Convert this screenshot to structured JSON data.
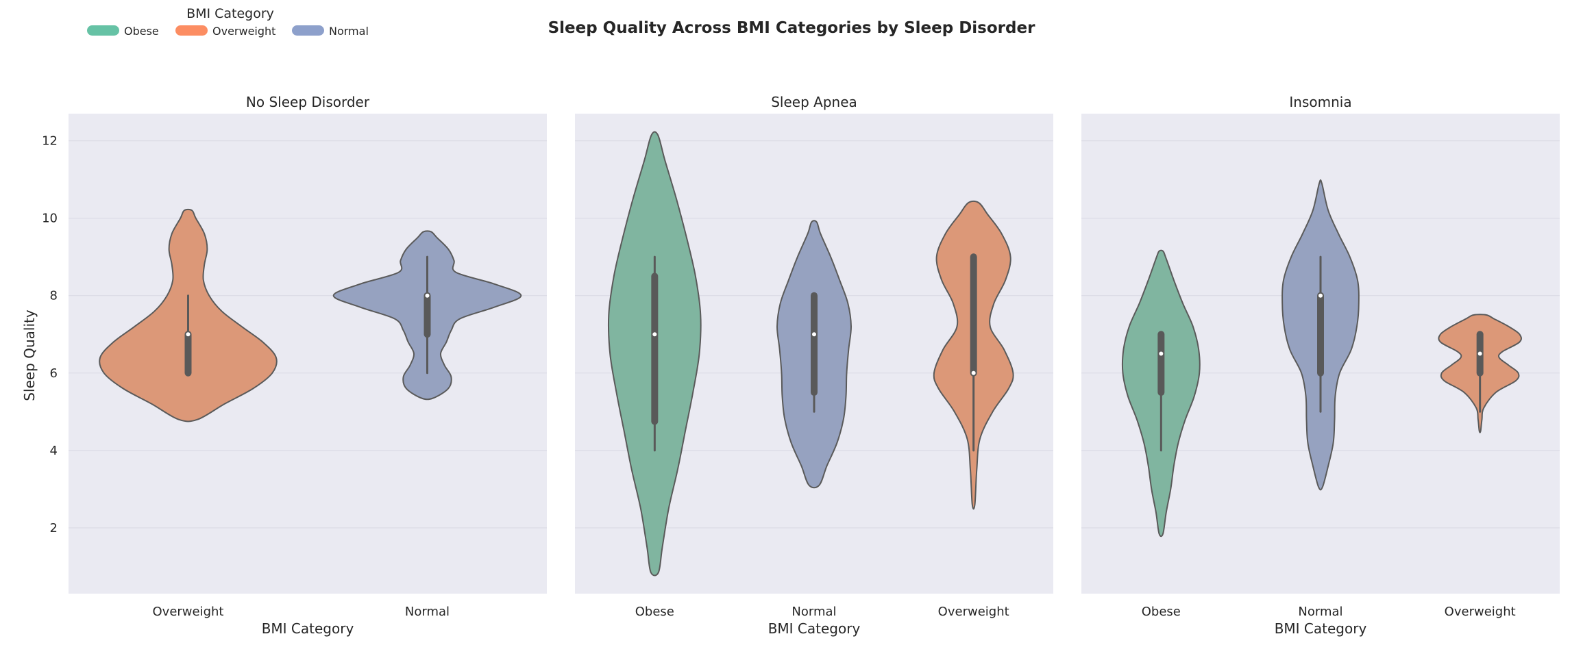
{
  "chart_data": {
    "type": "violin",
    "title": "Sleep Quality Across BMI Categories by Sleep Disorder",
    "ylabel": "Sleep Quality",
    "xlabel": "BMI Category",
    "ylim": [
      0.3,
      12.7
    ],
    "yticks": [
      2,
      4,
      6,
      8,
      10,
      12
    ],
    "grid": true,
    "legend": {
      "title": "BMI Category",
      "placement": "top-left",
      "entries": [
        {
          "name": "Obese",
          "color": "#66c2a5"
        },
        {
          "name": "Overweight",
          "color": "#fc8d62"
        },
        {
          "name": "Normal",
          "color": "#8da0cb"
        }
      ]
    },
    "colors": {
      "Obese": "#80b5a0",
      "Overweight": "#dc9878",
      "Normal": "#96a2c0",
      "outline": "#5a5a5a",
      "box": "#595959",
      "panel_bg": "#eaeaf2",
      "grid": "#dcdce6"
    },
    "panels": [
      {
        "title": "No Sleep Disorder",
        "categories": [
          "Overweight",
          "Normal"
        ],
        "violins": [
          {
            "category": "Overweight",
            "min": 4.8,
            "max": 10.2,
            "profile": [
              [
                4.8,
                0.1
              ],
              [
                5.2,
                0.38
              ],
              [
                5.6,
                0.68
              ],
              [
                6.0,
                0.88
              ],
              [
                6.4,
                0.92
              ],
              [
                6.8,
                0.78
              ],
              [
                7.2,
                0.56
              ],
              [
                7.6,
                0.35
              ],
              [
                8.0,
                0.22
              ],
              [
                8.4,
                0.16
              ],
              [
                8.8,
                0.17
              ],
              [
                9.2,
                0.2
              ],
              [
                9.6,
                0.17
              ],
              [
                10.0,
                0.08
              ],
              [
                10.2,
                0.04
              ]
            ],
            "q1": 6.0,
            "median": 7.0,
            "q3": 7.0,
            "whisker_low": 6.0,
            "whisker_high": 8.0
          },
          {
            "category": "Normal",
            "min": 5.35,
            "max": 9.65,
            "profile": [
              [
                5.35,
                0.06
              ],
              [
                5.6,
                0.22
              ],
              [
                5.9,
                0.25
              ],
              [
                6.2,
                0.18
              ],
              [
                6.5,
                0.14
              ],
              [
                6.8,
                0.2
              ],
              [
                7.1,
                0.25
              ],
              [
                7.4,
                0.34
              ],
              [
                7.7,
                0.7
              ],
              [
                8.0,
                0.98
              ],
              [
                8.3,
                0.7
              ],
              [
                8.6,
                0.3
              ],
              [
                8.9,
                0.28
              ],
              [
                9.2,
                0.22
              ],
              [
                9.5,
                0.1
              ],
              [
                9.65,
                0.04
              ]
            ],
            "q1": 7.0,
            "median": 8.0,
            "q3": 8.0,
            "whisker_low": 6.0,
            "whisker_high": 9.0
          }
        ]
      },
      {
        "title": "Sleep Apnea",
        "categories": [
          "Obese",
          "Normal",
          "Overweight"
        ],
        "violins": [
          {
            "category": "Obese",
            "min": 0.85,
            "max": 12.15,
            "profile": [
              [
                0.85,
                0.06
              ],
              [
                1.5,
                0.12
              ],
              [
                2.5,
                0.22
              ],
              [
                3.5,
                0.36
              ],
              [
                4.5,
                0.48
              ],
              [
                5.5,
                0.6
              ],
              [
                6.5,
                0.7
              ],
              [
                7.5,
                0.72
              ],
              [
                8.5,
                0.64
              ],
              [
                9.5,
                0.5
              ],
              [
                10.5,
                0.34
              ],
              [
                11.5,
                0.16
              ],
              [
                12.15,
                0.05
              ]
            ],
            "q1": 4.75,
            "median": 7.0,
            "q3": 8.5,
            "whisker_low": 4.0,
            "whisker_high": 9.0
          },
          {
            "category": "Normal",
            "min": 3.1,
            "max": 9.9,
            "profile": [
              [
                3.1,
                0.08
              ],
              [
                3.6,
                0.2
              ],
              [
                4.2,
                0.36
              ],
              [
                4.8,
                0.46
              ],
              [
                5.4,
                0.5
              ],
              [
                6.0,
                0.51
              ],
              [
                6.6,
                0.54
              ],
              [
                7.2,
                0.58
              ],
              [
                7.8,
                0.53
              ],
              [
                8.4,
                0.4
              ],
              [
                9.0,
                0.26
              ],
              [
                9.6,
                0.1
              ],
              [
                9.9,
                0.04
              ]
            ],
            "q1": 5.5,
            "median": 7.0,
            "q3": 8.0,
            "whisker_low": 5.0,
            "whisker_high": 8.0
          },
          {
            "category": "Overweight",
            "min": 2.6,
            "max": 10.4,
            "profile": [
              [
                2.6,
                0.02
              ],
              [
                3.5,
                0.05
              ],
              [
                4.3,
                0.1
              ],
              [
                5.0,
                0.3
              ],
              [
                5.6,
                0.55
              ],
              [
                6.0,
                0.62
              ],
              [
                6.6,
                0.48
              ],
              [
                7.2,
                0.26
              ],
              [
                7.8,
                0.32
              ],
              [
                8.4,
                0.5
              ],
              [
                9.0,
                0.58
              ],
              [
                9.6,
                0.44
              ],
              [
                10.1,
                0.22
              ],
              [
                10.4,
                0.08
              ]
            ],
            "q1": 6.0,
            "median": 6.0,
            "q3": 9.0,
            "whisker_low": 4.0,
            "whisker_high": 9.0
          }
        ]
      },
      {
        "title": "Insomnia",
        "categories": [
          "Obese",
          "Normal",
          "Overweight"
        ],
        "violins": [
          {
            "category": "Obese",
            "min": 1.85,
            "max": 9.15,
            "profile": [
              [
                1.85,
                0.03
              ],
              [
                2.4,
                0.08
              ],
              [
                3.0,
                0.15
              ],
              [
                3.6,
                0.2
              ],
              [
                4.2,
                0.27
              ],
              [
                4.8,
                0.38
              ],
              [
                5.4,
                0.52
              ],
              [
                6.0,
                0.6
              ],
              [
                6.6,
                0.59
              ],
              [
                7.2,
                0.5
              ],
              [
                7.8,
                0.34
              ],
              [
                8.4,
                0.2
              ],
              [
                9.0,
                0.07
              ],
              [
                9.15,
                0.03
              ]
            ],
            "q1": 5.5,
            "median": 6.5,
            "q3": 7.0,
            "whisker_low": 4.0,
            "whisker_high": 7.0
          },
          {
            "category": "Normal",
            "min": 3.05,
            "max": 10.9,
            "profile": [
              [
                3.05,
                0.03
              ],
              [
                3.6,
                0.12
              ],
              [
                4.2,
                0.2
              ],
              [
                4.8,
                0.22
              ],
              [
                5.4,
                0.23
              ],
              [
                6.0,
                0.3
              ],
              [
                6.6,
                0.48
              ],
              [
                7.2,
                0.57
              ],
              [
                7.8,
                0.6
              ],
              [
                8.4,
                0.58
              ],
              [
                9.0,
                0.46
              ],
              [
                9.6,
                0.28
              ],
              [
                10.2,
                0.12
              ],
              [
                10.9,
                0.02
              ]
            ],
            "q1": 6.0,
            "median": 8.0,
            "q3": 8.0,
            "whisker_low": 5.0,
            "whisker_high": 9.0
          },
          {
            "category": "Overweight",
            "min": 4.5,
            "max": 7.5,
            "profile": [
              [
                4.5,
                0.01
              ],
              [
                4.8,
                0.03
              ],
              [
                5.1,
                0.06
              ],
              [
                5.5,
                0.25
              ],
              [
                5.8,
                0.56
              ],
              [
                6.0,
                0.6
              ],
              [
                6.2,
                0.45
              ],
              [
                6.4,
                0.3
              ],
              [
                6.55,
                0.35
              ],
              [
                6.8,
                0.62
              ],
              [
                7.0,
                0.62
              ],
              [
                7.2,
                0.45
              ],
              [
                7.4,
                0.22
              ],
              [
                7.5,
                0.1
              ]
            ],
            "q1": 6.0,
            "median": 6.5,
            "q3": 7.0,
            "whisker_low": 5.0,
            "whisker_high": 7.0
          }
        ]
      }
    ]
  }
}
